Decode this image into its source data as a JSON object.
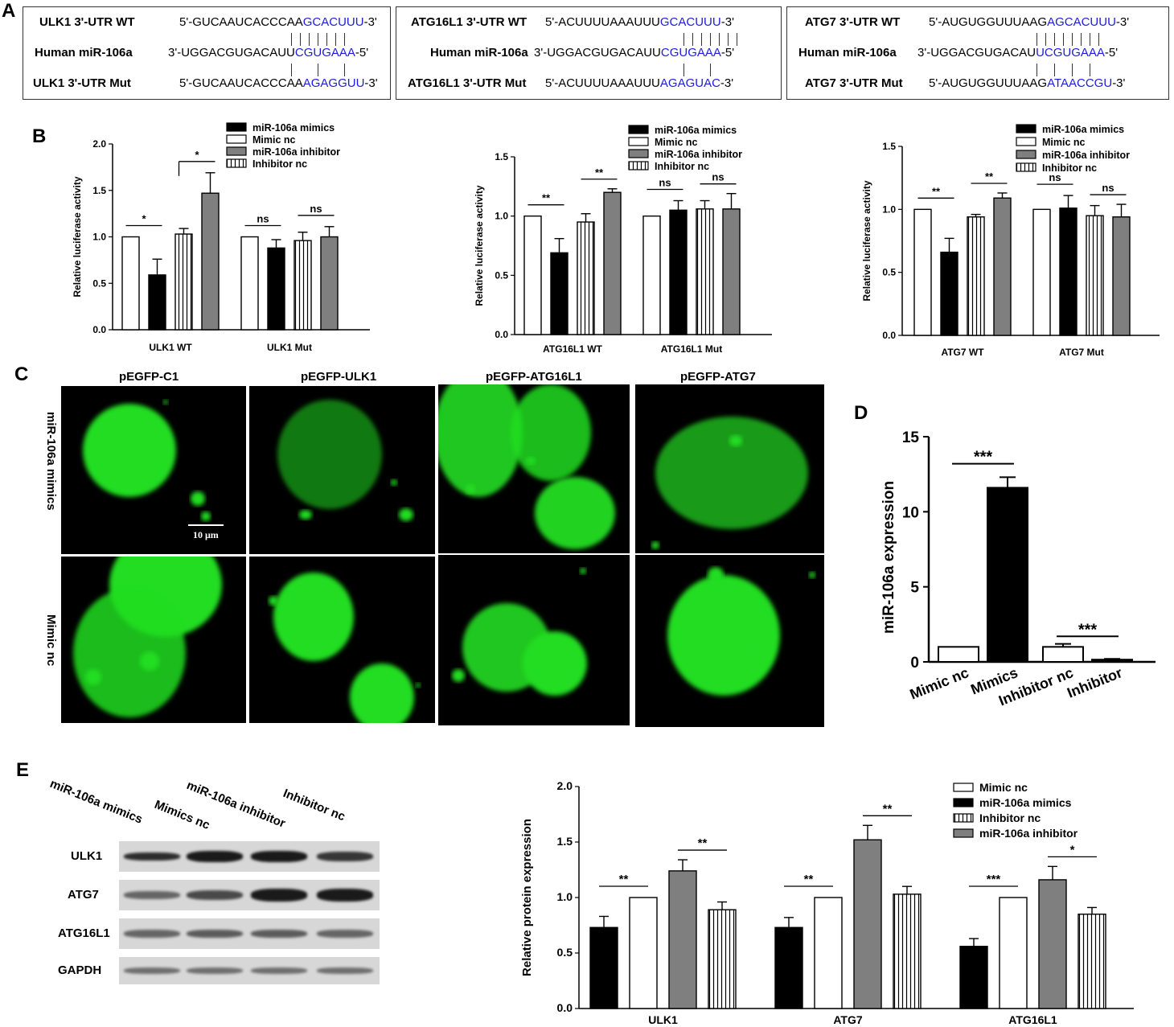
{
  "panels": {
    "A": "A",
    "B": "B",
    "C": "C",
    "D": "D",
    "E": "E"
  },
  "panelA": [
    {
      "wt_label": "ULK1 3'-UTR WT",
      "wt_seq_a": "5'-GUCAAUCACCCAA",
      "wt_seq_b": "GCACUUU",
      "wt_seq_c": "-3'",
      "mir_label": "Human miR-106a",
      "mir_seq_a": "3'-UGGACGUGACAUU",
      "mir_seq_b": "CGUGAAA",
      "mir_seq_c": "-5'",
      "mut_label": "ULK1 3'-UTR Mut",
      "mut_seq_a": "5'-GUCAAUCACCCAA",
      "mut_seq_b": "AGAGGUU",
      "mut_seq_c": "-3'"
    },
    {
      "wt_label": "ATG16L1 3'-UTR WT",
      "wt_seq_a": "5'-ACUUUUAAAUUU",
      "wt_seq_b": "GCACUUU",
      "wt_seq_c": "-3'",
      "mir_label": "Human miR-106a",
      "mir_seq_a": "3'-UGGACGUGACAUU",
      "mir_seq_b": "CGUGAAA",
      "mir_seq_c": "-5'",
      "mut_label": "ATG16L1 3'-UTR Mut",
      "mut_seq_a": "5'-ACUUUUAAAUUU",
      "mut_seq_b": "AGAGUAC",
      "mut_seq_c": "-3'"
    },
    {
      "wt_label": "ATG7 3'-UTR WT",
      "wt_seq_a": "5'-AUGUGGUUUAAG",
      "wt_seq_b": "AGCACUUU",
      "wt_seq_c": "-3'",
      "mir_label": "Human miR-106a",
      "mir_seq_a": "3'-UGGACGUGACAU",
      "mir_seq_b": "UCGUGAAA",
      "mir_seq_c": "-5'",
      "mut_label": "ATG7 3'-UTR Mut",
      "mut_seq_a": "5'-AUGUGGUUUAAG",
      "mut_seq_b": "ATAACCGU",
      "mut_seq_c": "-3'"
    }
  ],
  "chart_data": [
    {
      "type": "bar",
      "panel": "B",
      "ylabel": "Relative luciferase activity",
      "ylim": [
        0,
        2.0
      ],
      "yticks": [
        "0.0",
        "0.5",
        "1.0",
        "1.5",
        "2.0"
      ],
      "legend": [
        "miR-106a mimics",
        "Mimic nc",
        "miR-106a inhibitor",
        "Inhibitor nc"
      ],
      "categories": [
        "ULK1 WT",
        "ULK1 Mut"
      ],
      "series": [
        {
          "name": "Mimic nc",
          "values": [
            1.0,
            1.0
          ],
          "err": [
            0,
            0
          ]
        },
        {
          "name": "miR-106a mimics",
          "values": [
            0.59,
            0.88
          ],
          "err": [
            0.17,
            0.09
          ]
        },
        {
          "name": "Inhibitor nc",
          "values": [
            1.03,
            0.96
          ],
          "err": [
            0.06,
            0.09
          ]
        },
        {
          "name": "miR-106a inhibitor",
          "values": [
            1.47,
            1.0
          ],
          "err": [
            0.22,
            0.11
          ]
        }
      ],
      "sig": [
        "*",
        "*",
        "ns",
        "ns"
      ]
    },
    {
      "type": "bar",
      "panel": "B",
      "ylabel": "Relative luciferase activity",
      "ylim": [
        0,
        1.5
      ],
      "yticks": [
        "0.0",
        "0.5",
        "1.0",
        "1.5"
      ],
      "legend": [
        "miR-106a mimics",
        "Mimic nc",
        "miR-106a inhibitor",
        "Inhibitor nc"
      ],
      "categories": [
        "ATG16L1 WT",
        "ATG16L1 Mut"
      ],
      "series": [
        {
          "name": "Mimic nc",
          "values": [
            1.0,
            1.0
          ],
          "err": [
            0,
            0
          ]
        },
        {
          "name": "miR-106a mimics",
          "values": [
            0.69,
            1.05
          ],
          "err": [
            0.12,
            0.08
          ]
        },
        {
          "name": "Inhibitor nc",
          "values": [
            0.95,
            1.06
          ],
          "err": [
            0.07,
            0.07
          ]
        },
        {
          "name": "miR-106a inhibitor",
          "values": [
            1.2,
            1.06
          ],
          "err": [
            0.03,
            0.13
          ]
        }
      ],
      "sig": [
        "**",
        "**",
        "ns",
        "ns"
      ]
    },
    {
      "type": "bar",
      "panel": "B",
      "ylabel": "Relative luciferase activity",
      "ylim": [
        0,
        1.5
      ],
      "yticks": [
        "0.0",
        "0.5",
        "1.0",
        "1.5"
      ],
      "legend": [
        "miR-106a mimics",
        "Mimic nc",
        "miR-106a inhibitor",
        "Inhibitor nc"
      ],
      "categories": [
        "ATG7 WT",
        "ATG7 Mut"
      ],
      "series": [
        {
          "name": "Mimic nc",
          "values": [
            1.0,
            1.0
          ],
          "err": [
            0,
            0
          ]
        },
        {
          "name": "miR-106a mimics",
          "values": [
            0.66,
            1.01
          ],
          "err": [
            0.11,
            0.1
          ]
        },
        {
          "name": "Inhibitor nc",
          "values": [
            0.94,
            0.95
          ],
          "err": [
            0.02,
            0.08
          ]
        },
        {
          "name": "miR-106a inhibitor",
          "values": [
            1.09,
            0.94
          ],
          "err": [
            0.04,
            0.1
          ]
        }
      ],
      "sig": [
        "**",
        "**",
        "ns",
        "ns"
      ]
    },
    {
      "type": "bar",
      "panel": "D",
      "ylabel": "miR-106a expression",
      "ylim": [
        0,
        15
      ],
      "yticks": [
        "0",
        "5",
        "10",
        "15"
      ],
      "categories": [
        "Mimic nc",
        "Mimics",
        "Inhibitor nc",
        "Inhibitor"
      ],
      "values": [
        1.0,
        11.6,
        1.0,
        0.15
      ],
      "err": [
        0,
        0.7,
        0.2,
        0.05
      ],
      "sig": [
        "***",
        "***"
      ]
    },
    {
      "type": "bar",
      "panel": "E",
      "ylabel": "Relative protein expression",
      "ylim": [
        0,
        2.0
      ],
      "yticks": [
        "0.0",
        "0.5",
        "1.0",
        "1.5",
        "2.0"
      ],
      "legend": [
        "Mimic nc",
        "miR-106a mimics",
        "Inhibitor nc",
        "miR-106a inhibitor"
      ],
      "categories": [
        "ULK1",
        "ATG7",
        "ATG16L1"
      ],
      "series": [
        {
          "name": "miR-106a mimics",
          "values": [
            0.73,
            0.73,
            0.56
          ],
          "err": [
            0.1,
            0.09,
            0.07
          ]
        },
        {
          "name": "Mimic nc",
          "values": [
            1.0,
            1.0,
            1.0
          ],
          "err": [
            0,
            0,
            0
          ]
        },
        {
          "name": "miR-106a inhibitor",
          "values": [
            1.24,
            1.52,
            1.16
          ],
          "err": [
            0.1,
            0.13,
            0.12
          ]
        },
        {
          "name": "Inhibitor nc",
          "values": [
            0.89,
            1.03,
            0.85
          ],
          "err": [
            0.07,
            0.07,
            0.06
          ]
        }
      ],
      "sig": [
        "**",
        "**",
        "**",
        "**",
        "***",
        "*"
      ]
    }
  ],
  "panelC": {
    "columns": [
      "pEGFP-C1",
      "pEGFP-ULK1",
      "pEGFP-ATG16L1",
      "pEGFP-ATG7"
    ],
    "rows": [
      "miR-106a mimics",
      "Mimic nc"
    ],
    "scalebar": "10 μm"
  },
  "panelE_blot": {
    "lanes": [
      "miR-106a mimics",
      "Mimics nc",
      "miR-106a inhibitor",
      "Inhibitor nc"
    ],
    "proteins": [
      "ULK1",
      "ATG7",
      "ATG16L1",
      "GAPDH"
    ]
  }
}
